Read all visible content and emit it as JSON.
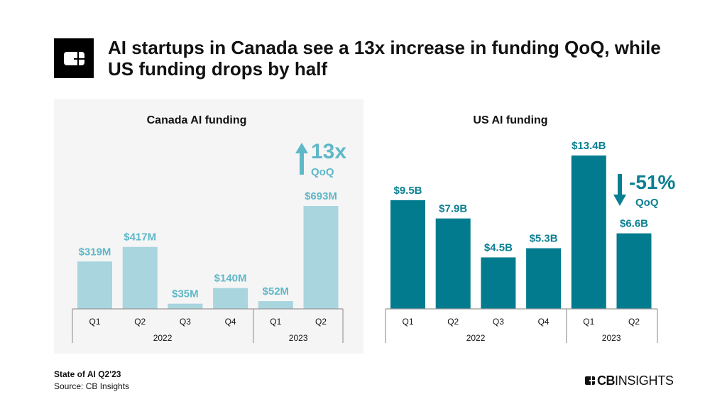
{
  "header": {
    "title": "AI startups in Canada see a 13x increase in funding QoQ, while US funding drops by half"
  },
  "footer": {
    "report": "State of AI Q2'23",
    "source": "Source: CB Insights",
    "brand_bold": "CB",
    "brand_rest": "INSIGHTS"
  },
  "colors": {
    "canada_bar": "#a8d5de",
    "canada_text": "#5fb8c8",
    "us_bar": "#037b8f",
    "us_text": "#0a7f91",
    "panel_bg": "#f5f5f5"
  },
  "chart_data": [
    {
      "type": "bar",
      "title": "Canada AI funding",
      "categories": [
        "Q1",
        "Q2",
        "Q3",
        "Q4",
        "Q1",
        "Q2"
      ],
      "groups": [
        {
          "label": "2022",
          "count": 4
        },
        {
          "label": "2023",
          "count": 2
        }
      ],
      "values": [
        319,
        417,
        35,
        140,
        52,
        693
      ],
      "unit": "$M",
      "data_labels": [
        "$319M",
        "$417M",
        "$35M",
        "$140M",
        "$52M",
        "$693M"
      ],
      "annotation": {
        "direction": "up",
        "value": "13x",
        "label": "QoQ"
      },
      "ylim": [
        0,
        693
      ]
    },
    {
      "type": "bar",
      "title": "US AI funding",
      "categories": [
        "Q1",
        "Q2",
        "Q3",
        "Q4",
        "Q1",
        "Q2"
      ],
      "groups": [
        {
          "label": "2022",
          "count": 4
        },
        {
          "label": "2023",
          "count": 2
        }
      ],
      "values": [
        9.5,
        7.9,
        4.5,
        5.3,
        13.4,
        6.6
      ],
      "unit": "$B",
      "data_labels": [
        "$9.5B",
        "$7.9B",
        "$4.5B",
        "$5.3B",
        "$13.4B",
        "$6.6B"
      ],
      "annotation": {
        "direction": "down",
        "value": "-51%",
        "label": "QoQ"
      },
      "ylim": [
        0,
        13.4
      ]
    }
  ]
}
